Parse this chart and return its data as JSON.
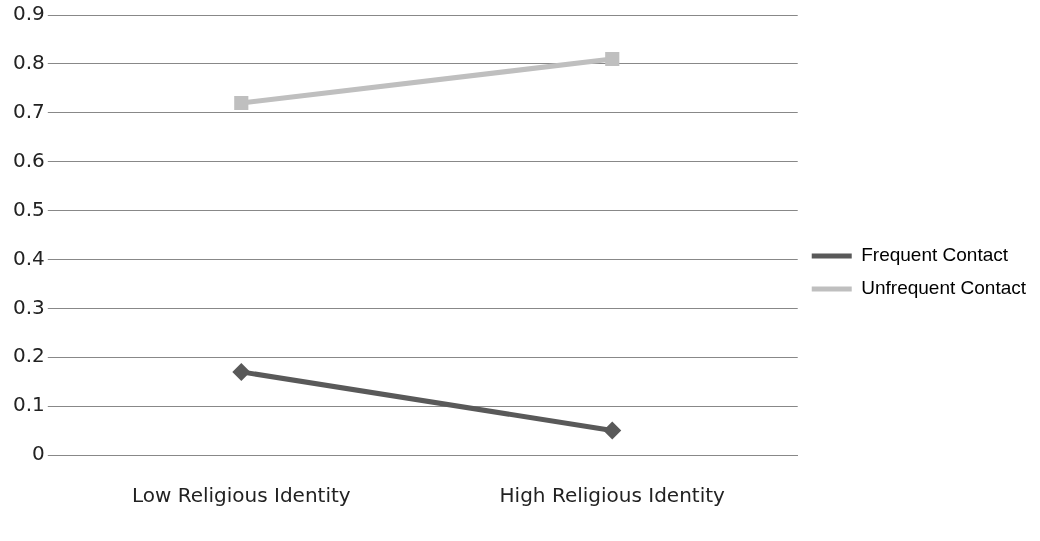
{
  "chart_data": {
    "type": "line",
    "categories": [
      "Low Religious Identity",
      "High Religious Identity"
    ],
    "series": [
      {
        "name": "Frequent Contact",
        "color": "#595959",
        "values": [
          0.17,
          0.05
        ],
        "marker": "diamond"
      },
      {
        "name": "Unfrequent Contact",
        "color": "#bfbfbf",
        "values": [
          0.72,
          0.81
        ],
        "marker": "square"
      }
    ],
    "ylim": [
      0,
      0.9
    ],
    "yticks": [
      0,
      0.1,
      0.2,
      0.3,
      0.4,
      0.5,
      0.6,
      0.7,
      0.8,
      0.9
    ],
    "grid": "y",
    "legend": "right",
    "line_style": "solid"
  }
}
